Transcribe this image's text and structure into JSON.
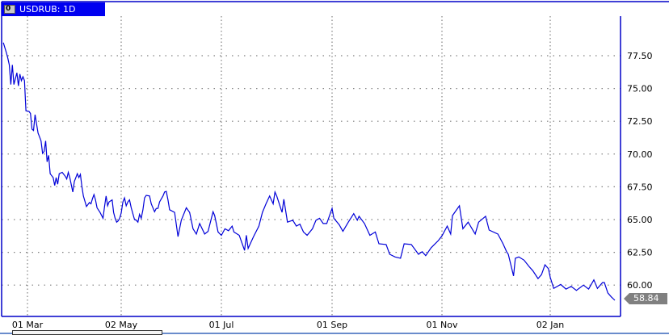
{
  "window": {
    "title": "USDRUB: 1D",
    "icon_label": "0"
  },
  "colors": {
    "line": "#0000d8",
    "frame": "#0000c8",
    "grid": "#808080",
    "title_bg": "#0000f0",
    "price_tag": "#808080"
  },
  "chart_data": {
    "type": "line",
    "title": "USDRUB: 1D",
    "xlabel": "",
    "ylabel": "",
    "y_axis_position": "right",
    "ylim": [
      58.0,
      79.5
    ],
    "yticks": [
      "77.50",
      "75.00",
      "72.50",
      "70.00",
      "67.50",
      "65.00",
      "62.50",
      "60.00"
    ],
    "xticks": [
      {
        "date": "2016-03-01",
        "label": "01 Mar"
      },
      {
        "date": "2016-05-02",
        "label": "02 May"
      },
      {
        "date": "2016-07-01",
        "label": "01 Jul"
      },
      {
        "date": "2016-09-01",
        "label": "01 Sep"
      },
      {
        "date": "2016-11-01",
        "label": "01 Nov"
      },
      {
        "date": "2017-01-02",
        "label": "02 Jan"
      }
    ],
    "grid": true,
    "last_price": "58.84",
    "series": [
      {
        "points": [
          [
            "2016-02-14",
            78.5
          ],
          [
            "2016-02-16",
            77.75
          ],
          [
            "2016-02-17",
            77.3
          ],
          [
            "2016-02-18",
            76.8
          ],
          [
            "2016-02-19",
            75.3
          ],
          [
            "2016-02-20",
            76.8
          ],
          [
            "2016-02-21",
            75.3
          ],
          [
            "2016-02-23",
            76.2
          ],
          [
            "2016-02-24",
            75.2
          ],
          [
            "2016-02-25",
            76.1
          ],
          [
            "2016-02-26",
            75.6
          ],
          [
            "2016-02-27",
            75.9
          ],
          [
            "2016-02-28",
            75.6
          ],
          [
            "2016-02-29",
            73.3
          ],
          [
            "2016-03-02",
            73.25
          ],
          [
            "2016-03-03",
            73.1
          ],
          [
            "2016-03-04",
            71.9
          ],
          [
            "2016-03-05",
            71.8
          ],
          [
            "2016-03-06",
            73.0
          ],
          [
            "2016-03-08",
            71.6
          ],
          [
            "2016-03-09",
            71.3
          ],
          [
            "2016-03-10",
            71.0
          ],
          [
            "2016-03-11",
            70.05
          ],
          [
            "2016-03-12",
            70.2
          ],
          [
            "2016-03-13",
            71.0
          ],
          [
            "2016-03-14",
            69.4
          ],
          [
            "2016-03-15",
            69.9
          ],
          [
            "2016-03-16",
            68.5
          ],
          [
            "2016-03-18",
            68.2
          ],
          [
            "2016-03-19",
            67.6
          ],
          [
            "2016-03-20",
            68.2
          ],
          [
            "2016-03-21",
            67.7
          ],
          [
            "2016-03-22",
            68.5
          ],
          [
            "2016-03-24",
            68.6
          ],
          [
            "2016-03-26",
            68.3
          ],
          [
            "2016-03-27",
            68.1
          ],
          [
            "2016-03-28",
            68.6
          ],
          [
            "2016-03-29",
            68.2
          ],
          [
            "2016-03-31",
            67.1
          ],
          [
            "2016-04-01",
            67.9
          ],
          [
            "2016-04-03",
            68.5
          ],
          [
            "2016-04-04",
            68.2
          ],
          [
            "2016-04-05",
            68.45
          ],
          [
            "2016-04-06",
            67.5
          ],
          [
            "2016-04-07",
            66.8
          ],
          [
            "2016-04-09",
            66.0
          ],
          [
            "2016-04-11",
            66.3
          ],
          [
            "2016-04-12",
            66.2
          ],
          [
            "2016-04-13",
            66.6
          ],
          [
            "2016-04-14",
            66.9
          ],
          [
            "2016-04-15",
            66.5
          ],
          [
            "2016-04-16",
            65.9
          ],
          [
            "2016-04-18",
            65.55
          ],
          [
            "2016-04-20",
            65.1
          ],
          [
            "2016-04-21",
            66.0
          ],
          [
            "2016-04-22",
            66.8
          ],
          [
            "2016-04-23",
            66.05
          ],
          [
            "2016-04-24",
            66.35
          ],
          [
            "2016-04-26",
            66.5
          ],
          [
            "2016-04-27",
            65.55
          ],
          [
            "2016-04-28",
            65.1
          ],
          [
            "2016-04-29",
            64.8
          ],
          [
            "2016-04-30",
            64.9
          ],
          [
            "2016-05-01",
            65.1
          ],
          [
            "2016-05-02",
            65.5
          ],
          [
            "2016-05-03",
            66.35
          ],
          [
            "2016-05-04",
            66.65
          ],
          [
            "2016-05-05",
            66.05
          ],
          [
            "2016-05-06",
            66.35
          ],
          [
            "2016-05-07",
            66.5
          ],
          [
            "2016-05-08",
            65.9
          ],
          [
            "2016-05-10",
            65.0
          ],
          [
            "2016-05-11",
            64.95
          ],
          [
            "2016-05-12",
            64.8
          ],
          [
            "2016-05-13",
            65.4
          ],
          [
            "2016-05-14",
            65.1
          ],
          [
            "2016-05-15",
            65.75
          ],
          [
            "2016-05-16",
            66.65
          ],
          [
            "2016-05-17",
            66.85
          ],
          [
            "2016-05-19",
            66.8
          ],
          [
            "2016-05-20",
            66.2
          ],
          [
            "2016-05-22",
            65.6
          ],
          [
            "2016-05-23",
            65.85
          ],
          [
            "2016-05-24",
            65.85
          ],
          [
            "2016-05-25",
            66.35
          ],
          [
            "2016-05-27",
            66.8
          ],
          [
            "2016-05-28",
            67.1
          ],
          [
            "2016-05-29",
            67.15
          ],
          [
            "2016-05-30",
            66.5
          ],
          [
            "2016-05-31",
            65.75
          ],
          [
            "2016-06-03",
            65.55
          ],
          [
            "2016-06-05",
            63.7
          ],
          [
            "2016-06-07",
            64.95
          ],
          [
            "2016-06-10",
            65.9
          ],
          [
            "2016-06-12",
            65.55
          ],
          [
            "2016-06-14",
            64.3
          ],
          [
            "2016-06-16",
            63.9
          ],
          [
            "2016-06-18",
            64.7
          ],
          [
            "2016-06-21",
            63.9
          ],
          [
            "2016-06-23",
            64.1
          ],
          [
            "2016-06-26",
            65.6
          ],
          [
            "2016-06-27",
            65.3
          ],
          [
            "2016-06-29",
            64.05
          ],
          [
            "2016-07-01",
            63.8
          ],
          [
            "2016-07-03",
            64.3
          ],
          [
            "2016-07-05",
            64.15
          ],
          [
            "2016-07-07",
            64.5
          ],
          [
            "2016-07-08",
            64.05
          ],
          [
            "2016-07-11",
            63.8
          ],
          [
            "2016-07-14",
            62.65
          ],
          [
            "2016-07-15",
            63.8
          ],
          [
            "2016-07-16",
            62.8
          ],
          [
            "2016-07-19",
            63.7
          ],
          [
            "2016-07-22",
            64.5
          ],
          [
            "2016-07-24",
            65.55
          ],
          [
            "2016-07-26",
            66.2
          ],
          [
            "2016-07-28",
            66.8
          ],
          [
            "2016-07-30",
            66.2
          ],
          [
            "2016-07-31",
            67.1
          ],
          [
            "2016-08-01",
            66.8
          ],
          [
            "2016-08-04",
            65.55
          ],
          [
            "2016-08-05",
            66.55
          ],
          [
            "2016-08-07",
            64.8
          ],
          [
            "2016-08-10",
            64.95
          ],
          [
            "2016-08-12",
            64.5
          ],
          [
            "2016-08-14",
            64.65
          ],
          [
            "2016-08-16",
            64.05
          ],
          [
            "2016-08-18",
            63.8
          ],
          [
            "2016-08-21",
            64.3
          ],
          [
            "2016-08-23",
            64.95
          ],
          [
            "2016-08-25",
            65.1
          ],
          [
            "2016-08-27",
            64.7
          ],
          [
            "2016-08-29",
            64.7
          ],
          [
            "2016-09-01",
            65.85
          ],
          [
            "2016-09-02",
            65.1
          ],
          [
            "2016-09-05",
            64.6
          ],
          [
            "2016-09-07",
            64.1
          ],
          [
            "2016-09-10",
            64.8
          ],
          [
            "2016-09-13",
            65.45
          ],
          [
            "2016-09-15",
            64.95
          ],
          [
            "2016-09-16",
            65.25
          ],
          [
            "2016-09-19",
            64.7
          ],
          [
            "2016-09-22",
            63.8
          ],
          [
            "2016-09-25",
            64.05
          ],
          [
            "2016-09-27",
            63.15
          ],
          [
            "2016-10-01",
            63.1
          ],
          [
            "2016-10-03",
            62.35
          ],
          [
            "2016-10-06",
            62.15
          ],
          [
            "2016-10-09",
            62.05
          ],
          [
            "2016-10-11",
            63.15
          ],
          [
            "2016-10-15",
            63.1
          ],
          [
            "2016-10-19",
            62.35
          ],
          [
            "2016-10-21",
            62.55
          ],
          [
            "2016-10-23",
            62.25
          ],
          [
            "2016-10-26",
            62.85
          ],
          [
            "2016-10-30",
            63.4
          ],
          [
            "2016-11-01",
            63.75
          ],
          [
            "2016-11-04",
            64.5
          ],
          [
            "2016-11-06",
            63.9
          ],
          [
            "2016-11-07",
            65.3
          ],
          [
            "2016-11-11",
            66.05
          ],
          [
            "2016-11-13",
            64.3
          ],
          [
            "2016-11-16",
            64.8
          ],
          [
            "2016-11-20",
            63.9
          ],
          [
            "2016-11-22",
            64.8
          ],
          [
            "2016-11-26",
            65.25
          ],
          [
            "2016-11-28",
            64.2
          ],
          [
            "2016-12-03",
            63.9
          ],
          [
            "2016-12-06",
            63.15
          ],
          [
            "2016-12-08",
            62.55
          ],
          [
            "2016-12-09",
            62.35
          ],
          [
            "2016-12-12",
            60.7
          ],
          [
            "2016-12-13",
            62.05
          ],
          [
            "2016-12-15",
            62.15
          ],
          [
            "2016-12-18",
            61.9
          ],
          [
            "2016-12-21",
            61.4
          ],
          [
            "2016-12-23",
            61.1
          ],
          [
            "2016-12-26",
            60.5
          ],
          [
            "2016-12-28",
            60.8
          ],
          [
            "2016-12-30",
            61.55
          ],
          [
            "2017-01-01",
            61.25
          ],
          [
            "2017-01-02",
            60.6
          ],
          [
            "2017-01-04",
            59.75
          ],
          [
            "2017-01-08",
            60.05
          ],
          [
            "2017-01-11",
            59.7
          ],
          [
            "2017-01-14",
            59.9
          ],
          [
            "2017-01-17",
            59.6
          ],
          [
            "2017-01-21",
            60.0
          ],
          [
            "2017-01-24",
            59.7
          ],
          [
            "2017-01-27",
            60.4
          ],
          [
            "2017-01-29",
            59.75
          ],
          [
            "2017-02-01",
            60.2
          ],
          [
            "2017-02-02",
            60.2
          ],
          [
            "2017-02-04",
            59.4
          ],
          [
            "2017-02-06",
            59.1
          ],
          [
            "2017-02-08",
            58.84
          ]
        ]
      }
    ]
  }
}
